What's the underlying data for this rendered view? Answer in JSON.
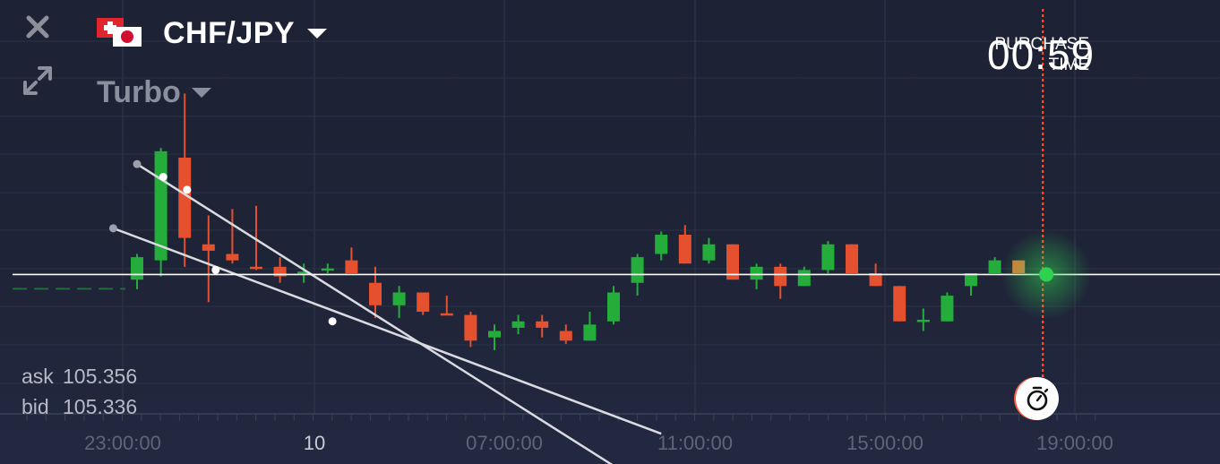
{
  "header": {
    "pair": "CHF/JPY",
    "mode": "Turbo",
    "purchase_line1": "PURCHASE",
    "purchase_line2": "TIME",
    "timer": "00:59"
  },
  "quotes": {
    "ask_label": "ask",
    "ask_value": "105.356",
    "bid_label": "bid",
    "bid_value": "105.336"
  },
  "icons": {
    "close": "close-icon",
    "expand": "expand-icon",
    "flags": "chf-jpy-flags-icon",
    "expiry": "stopwatch-icon"
  },
  "colors": {
    "background": "#1e2336",
    "up_candle": "#25ad3c",
    "down_candle": "#e5502e",
    "pending_candle": "#e07a3a",
    "price_line": "#ffffff",
    "expiry_line": "#ff5a3c",
    "grid": "#2c3246",
    "axis_label": "#5f6577"
  },
  "chart_data": {
    "type": "candlestick",
    "x_ticks": [
      "23:00:00",
      "10",
      "07:00:00",
      "11:00:00",
      "15:00:00",
      "19:00:00"
    ],
    "current_price": 105.346,
    "candles": [
      {
        "dir": "up",
        "o": 105.33,
        "c": 105.4,
        "h": 105.41,
        "l": 105.3
      },
      {
        "dir": "up",
        "o": 105.39,
        "c": 105.73,
        "h": 105.74,
        "l": 105.34
      },
      {
        "dir": "down",
        "o": 105.71,
        "c": 105.46,
        "h": 105.91,
        "l": 105.37
      },
      {
        "dir": "down",
        "o": 105.44,
        "c": 105.42,
        "h": 105.53,
        "l": 105.26
      },
      {
        "dir": "down",
        "o": 105.41,
        "c": 105.39,
        "h": 105.55,
        "l": 105.38
      },
      {
        "dir": "down",
        "o": 105.37,
        "c": 105.365,
        "h": 105.56,
        "l": 105.36
      },
      {
        "dir": "down",
        "o": 105.37,
        "c": 105.34,
        "h": 105.4,
        "l": 105.32
      },
      {
        "dir": "up",
        "o": 105.35,
        "c": 105.355,
        "h": 105.38,
        "l": 105.32
      },
      {
        "dir": "up",
        "o": 105.36,
        "c": 105.365,
        "h": 105.38,
        "l": 105.35
      },
      {
        "dir": "down",
        "o": 105.39,
        "c": 105.35,
        "h": 105.43,
        "l": 105.35
      },
      {
        "dir": "down",
        "o": 105.32,
        "c": 105.25,
        "h": 105.37,
        "l": 105.21
      },
      {
        "dir": "up",
        "o": 105.25,
        "c": 105.29,
        "h": 105.31,
        "l": 105.21
      },
      {
        "dir": "down",
        "o": 105.29,
        "c": 105.23,
        "h": 105.29,
        "l": 105.22
      },
      {
        "dir": "down",
        "o": 105.225,
        "c": 105.22,
        "h": 105.28,
        "l": 105.22
      },
      {
        "dir": "down",
        "o": 105.22,
        "c": 105.14,
        "h": 105.23,
        "l": 105.12
      },
      {
        "dir": "up",
        "o": 105.15,
        "c": 105.17,
        "h": 105.19,
        "l": 105.11
      },
      {
        "dir": "up",
        "o": 105.18,
        "c": 105.2,
        "h": 105.22,
        "l": 105.16
      },
      {
        "dir": "down",
        "o": 105.2,
        "c": 105.18,
        "h": 105.22,
        "l": 105.15
      },
      {
        "dir": "down",
        "o": 105.17,
        "c": 105.14,
        "h": 105.19,
        "l": 105.13
      },
      {
        "dir": "up",
        "o": 105.14,
        "c": 105.19,
        "h": 105.23,
        "l": 105.14
      },
      {
        "dir": "up",
        "o": 105.2,
        "c": 105.29,
        "h": 105.31,
        "l": 105.19
      },
      {
        "dir": "up",
        "o": 105.32,
        "c": 105.4,
        "h": 105.41,
        "l": 105.28
      },
      {
        "dir": "up",
        "o": 105.41,
        "c": 105.47,
        "h": 105.48,
        "l": 105.39
      },
      {
        "dir": "down",
        "o": 105.47,
        "c": 105.38,
        "h": 105.5,
        "l": 105.38
      },
      {
        "dir": "up",
        "o": 105.39,
        "c": 105.44,
        "h": 105.46,
        "l": 105.38
      },
      {
        "dir": "down",
        "o": 105.44,
        "c": 105.33,
        "h": 105.44,
        "l": 105.33
      },
      {
        "dir": "up",
        "o": 105.33,
        "c": 105.37,
        "h": 105.38,
        "l": 105.3
      },
      {
        "dir": "down",
        "o": 105.37,
        "c": 105.31,
        "h": 105.38,
        "l": 105.27
      },
      {
        "dir": "up",
        "o": 105.31,
        "c": 105.36,
        "h": 105.37,
        "l": 105.31
      },
      {
        "dir": "up",
        "o": 105.36,
        "c": 105.44,
        "h": 105.45,
        "l": 105.35
      },
      {
        "dir": "down",
        "o": 105.44,
        "c": 105.35,
        "h": 105.44,
        "l": 105.35
      },
      {
        "dir": "down",
        "o": 105.35,
        "c": 105.31,
        "h": 105.38,
        "l": 105.31
      },
      {
        "dir": "down",
        "o": 105.31,
        "c": 105.2,
        "h": 105.31,
        "l": 105.2
      },
      {
        "dir": "up",
        "o": 105.2,
        "c": 105.205,
        "h": 105.24,
        "l": 105.17
      },
      {
        "dir": "up",
        "o": 105.2,
        "c": 105.28,
        "h": 105.29,
        "l": 105.2
      },
      {
        "dir": "up",
        "o": 105.31,
        "c": 105.35,
        "h": 105.35,
        "l": 105.28
      },
      {
        "dir": "up",
        "o": 105.35,
        "c": 105.39,
        "h": 105.4,
        "l": 105.35
      },
      {
        "dir": "pending",
        "o": 105.39,
        "c": 105.35,
        "h": 105.39,
        "l": 105.35
      }
    ],
    "trend_lines": [
      {
        "points": [
          [
            0,
            105.69
          ],
          [
            1.1,
            105.65
          ],
          [
            2.1,
            105.61
          ],
          [
            20,
            104.75
          ]
        ]
      },
      {
        "points": [
          [
            -1,
            105.49
          ],
          [
            3.3,
            105.36
          ],
          [
            8.2,
            105.2
          ],
          [
            22,
            104.85
          ]
        ]
      }
    ]
  }
}
